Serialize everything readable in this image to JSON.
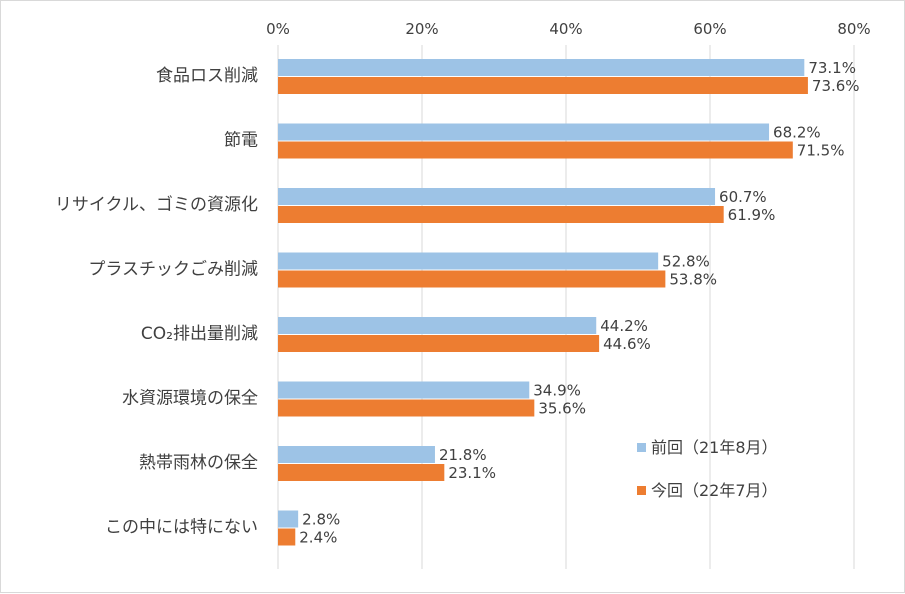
{
  "chart_data": {
    "type": "bar",
    "orientation": "horizontal",
    "xlim": [
      0,
      80
    ],
    "x_ticks": [
      0,
      20,
      40,
      60,
      80
    ],
    "x_tick_suffix": "%",
    "grid": true,
    "legend_position": "bottom-right",
    "categories": [
      "食品ロス削減",
      "節電",
      "リサイクル、ゴミの資源化",
      "プラスチックごみ削減",
      "CO₂排出量削減",
      "水資源環境の保全",
      "熱帯雨林の保全",
      "この中には特にない"
    ],
    "series": [
      {
        "name": "前回（21年8月）",
        "color": "#9dc3e6",
        "values": [
          73.1,
          68.2,
          60.7,
          52.8,
          44.2,
          34.9,
          21.8,
          2.8
        ]
      },
      {
        "name": "今回（22年7月）",
        "color": "#ed7d31",
        "values": [
          73.6,
          71.5,
          61.9,
          53.8,
          44.6,
          35.6,
          23.1,
          2.4
        ]
      }
    ]
  }
}
